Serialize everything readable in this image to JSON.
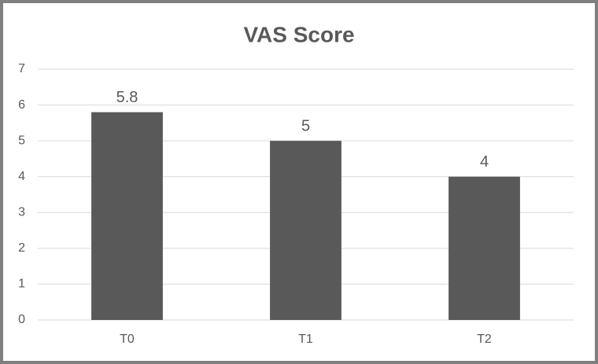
{
  "chart_data": {
    "type": "bar",
    "title": "VAS Score",
    "categories": [
      "T0",
      "T1",
      "T2"
    ],
    "values": [
      5.8,
      5,
      4
    ],
    "color": "#595959",
    "ylim": [
      0,
      7
    ],
    "yticks": [
      0,
      1,
      2,
      3,
      4,
      5,
      6,
      7
    ],
    "grid": true
  }
}
